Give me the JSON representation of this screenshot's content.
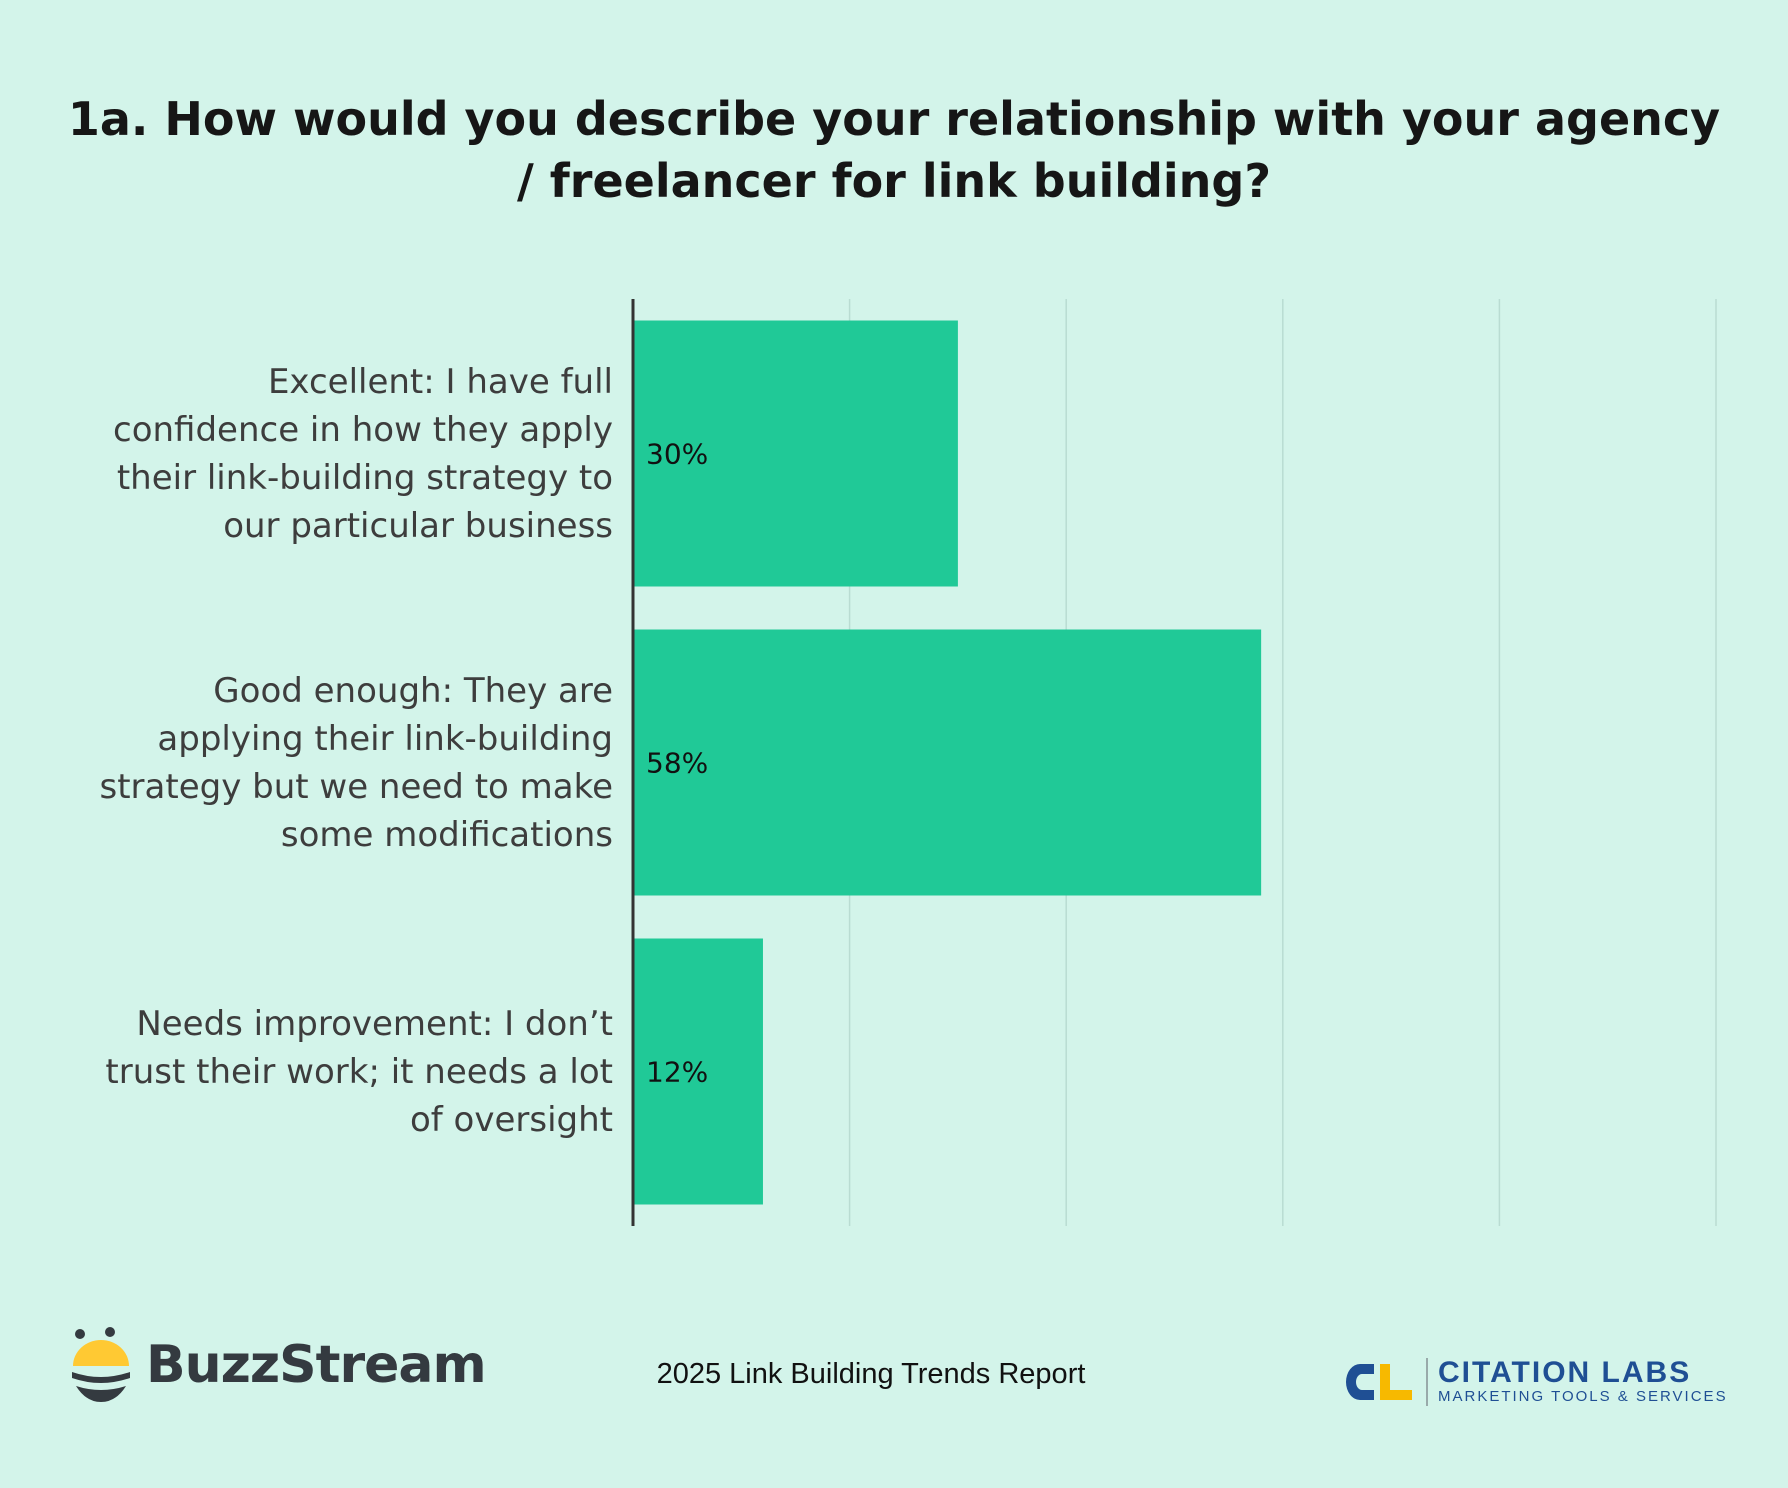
{
  "chart_data": {
    "type": "bar",
    "orientation": "horizontal",
    "title": "1a. How would you describe your relationship with your agency / freelancer for link building?",
    "categories": [
      "Excellent: I have full confidence in how they apply their link-building strategy to our particular business",
      "Good enough: They are applying their link-building strategy but we need to make some modifications",
      "Needs improvement: I don’t trust their work; it needs a lot of oversight"
    ],
    "category_lines": [
      [
        "Excellent: I have full",
        "confidence in how they apply",
        "their link-building strategy to",
        "our particular business"
      ],
      [
        "Good enough: They are",
        "applying their link-building",
        "strategy but we need to make",
        "some modifications"
      ],
      [
        "Needs improvement: I don’t",
        "trust their work; it needs a lot",
        "of oversight"
      ]
    ],
    "values": [
      30,
      58,
      12
    ],
    "data_labels": [
      "30%",
      "58%",
      "12%"
    ],
    "xlim": [
      0,
      100
    ],
    "grid": true,
    "xticks_visible": false,
    "bar_color": "#20c997",
    "background": "#d3f4ea"
  },
  "footer": {
    "report": "2025 Link Building Trends Report",
    "logo_left": "BuzzStream",
    "logo_right_name": "CITATION LABS",
    "logo_right_sub": "MARKETING TOOLS & SERVICES"
  }
}
